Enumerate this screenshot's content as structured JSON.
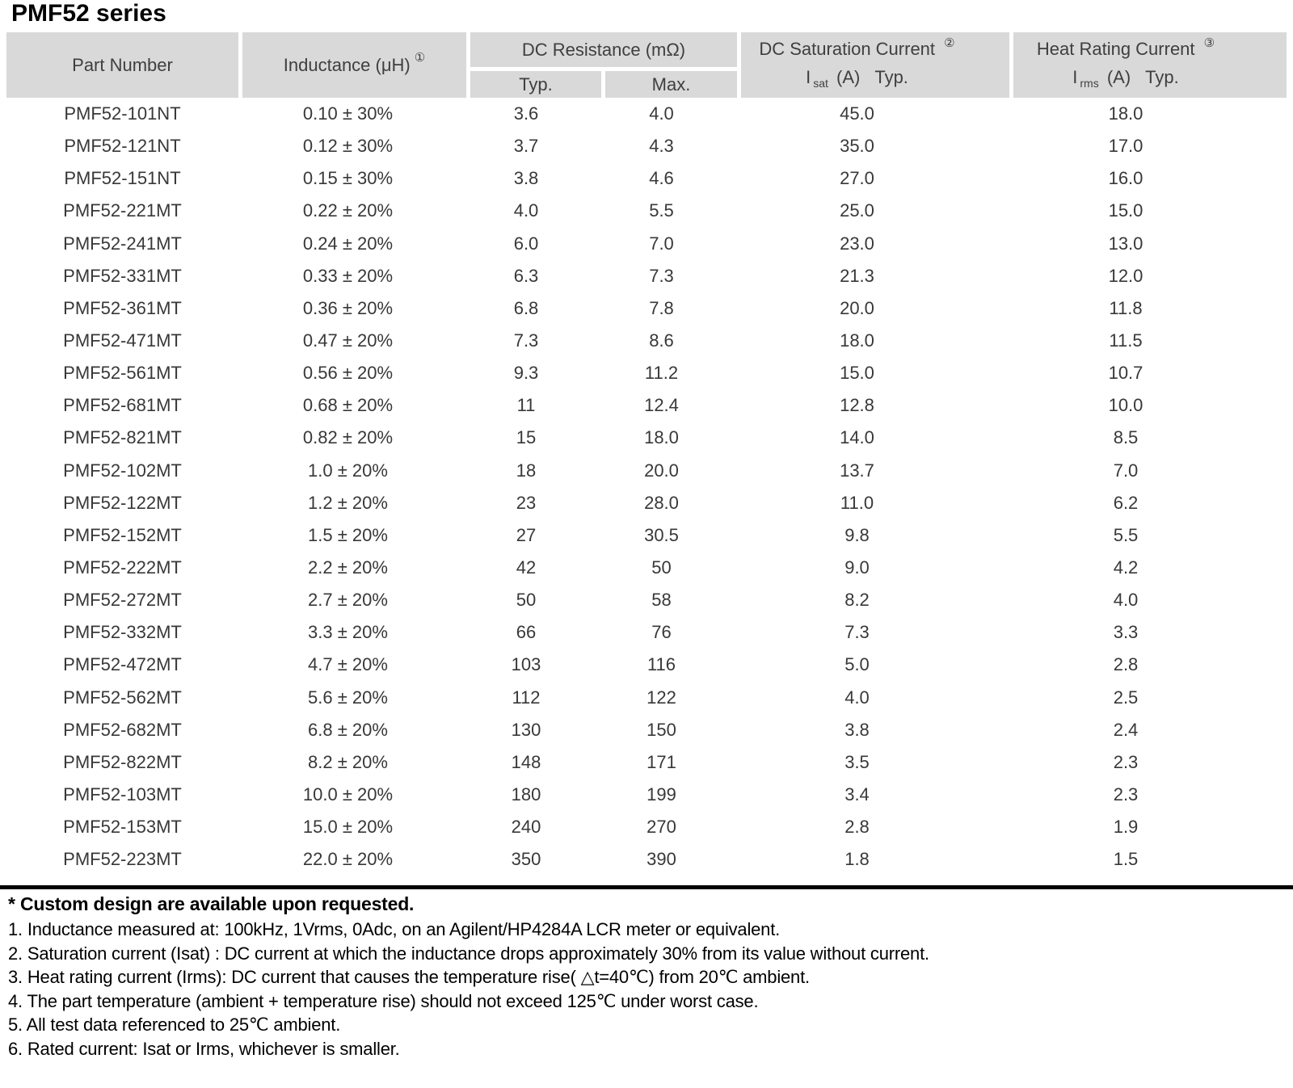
{
  "title": "PMF52 series",
  "colors": {
    "header_bg": "#d9d9d9",
    "header_text": "#3f3f3f",
    "body_text": "#383838",
    "rule": "#000000"
  },
  "table": {
    "headers": {
      "part_number": "Part Number",
      "inductance": "Inductance (μH)",
      "inductance_note": "①",
      "dc_resistance": "DC Resistance (mΩ)",
      "dc_resistance_typ": "Typ.",
      "dc_resistance_max": "Max.",
      "saturation": "DC Saturation Current",
      "saturation_note": "②",
      "saturation_sub": {
        "i": "I",
        "sub": "sat",
        "unit": "(A)",
        "typ": "Typ."
      },
      "heat": "Heat Rating Current",
      "heat_note": "③",
      "heat_sub": {
        "i": "I",
        "sub": "rms",
        "unit": "(A)",
        "typ": "Typ."
      }
    },
    "rows": [
      {
        "part": "PMF52-101NT",
        "ind": "0.10 ± 30%",
        "typ": "3.6",
        "max": "4.0",
        "isat": "45.0",
        "irms": "18.0"
      },
      {
        "part": "PMF52-121NT",
        "ind": "0.12 ± 30%",
        "typ": "3.7",
        "max": "4.3",
        "isat": "35.0",
        "irms": "17.0"
      },
      {
        "part": "PMF52-151NT",
        "ind": "0.15 ± 30%",
        "typ": "3.8",
        "max": "4.6",
        "isat": "27.0",
        "irms": "16.0"
      },
      {
        "part": "PMF52-221MT",
        "ind": "0.22 ± 20%",
        "typ": "4.0",
        "max": "5.5",
        "isat": "25.0",
        "irms": "15.0"
      },
      {
        "part": "PMF52-241MT",
        "ind": "0.24 ± 20%",
        "typ": "6.0",
        "max": "7.0",
        "isat": "23.0",
        "irms": "13.0"
      },
      {
        "part": "PMF52-331MT",
        "ind": "0.33 ± 20%",
        "typ": "6.3",
        "max": "7.3",
        "isat": "21.3",
        "irms": "12.0"
      },
      {
        "part": "PMF52-361MT",
        "ind": "0.36 ± 20%",
        "typ": "6.8",
        "max": "7.8",
        "isat": "20.0",
        "irms": "11.8"
      },
      {
        "part": "PMF52-471MT",
        "ind": "0.47 ± 20%",
        "typ": "7.3",
        "max": "8.6",
        "isat": "18.0",
        "irms": "11.5"
      },
      {
        "part": "PMF52-561MT",
        "ind": "0.56 ± 20%",
        "typ": "9.3",
        "max": "11.2",
        "isat": "15.0",
        "irms": "10.7"
      },
      {
        "part": "PMF52-681MT",
        "ind": "0.68 ± 20%",
        "typ": "11",
        "max": "12.4",
        "isat": "12.8",
        "irms": "10.0"
      },
      {
        "part": "PMF52-821MT",
        "ind": "0.82 ± 20%",
        "typ": "15",
        "max": "18.0",
        "isat": "14.0",
        "irms": "8.5"
      },
      {
        "part": "PMF52-102MT",
        "ind": "1.0 ± 20%",
        "typ": "18",
        "max": "20.0",
        "isat": "13.7",
        "irms": "7.0"
      },
      {
        "part": "PMF52-122MT",
        "ind": "1.2 ± 20%",
        "typ": "23",
        "max": "28.0",
        "isat": "11.0",
        "irms": "6.2"
      },
      {
        "part": "PMF52-152MT",
        "ind": "1.5 ± 20%",
        "typ": "27",
        "max": "30.5",
        "isat": "9.8",
        "irms": "5.5"
      },
      {
        "part": "PMF52-222MT",
        "ind": "2.2 ± 20%",
        "typ": "42",
        "max": "50",
        "isat": "9.0",
        "irms": "4.2"
      },
      {
        "part": "PMF52-272MT",
        "ind": "2.7 ± 20%",
        "typ": "50",
        "max": "58",
        "isat": "8.2",
        "irms": "4.0"
      },
      {
        "part": "PMF52-332MT",
        "ind": "3.3 ± 20%",
        "typ": "66",
        "max": "76",
        "isat": "7.3",
        "irms": "3.3"
      },
      {
        "part": "PMF52-472MT",
        "ind": "4.7 ± 20%",
        "typ": "103",
        "max": "116",
        "isat": "5.0",
        "irms": "2.8"
      },
      {
        "part": "PMF52-562MT",
        "ind": "5.6 ± 20%",
        "typ": "112",
        "max": "122",
        "isat": "4.0",
        "irms": "2.5"
      },
      {
        "part": "PMF52-682MT",
        "ind": "6.8 ± 20%",
        "typ": "130",
        "max": "150",
        "isat": "3.8",
        "irms": "2.4"
      },
      {
        "part": "PMF52-822MT",
        "ind": "8.2 ± 20%",
        "typ": "148",
        "max": "171",
        "isat": "3.5",
        "irms": "2.3"
      },
      {
        "part": "PMF52-103MT",
        "ind": "10.0 ± 20%",
        "typ": "180",
        "max": "199",
        "isat": "3.4",
        "irms": "2.3"
      },
      {
        "part": "PMF52-153MT",
        "ind": "15.0 ± 20%",
        "typ": "240",
        "max": "270",
        "isat": "2.8",
        "irms": "1.9"
      },
      {
        "part": "PMF52-223MT",
        "ind": "22.0 ± 20%",
        "typ": "350",
        "max": "390",
        "isat": "1.8",
        "irms": "1.5"
      }
    ]
  },
  "footnotes": {
    "custom": "* Custom design are available upon requested.",
    "notes": [
      "1. Inductance measured at: 100kHz, 1Vrms, 0Adc, on an Agilent/HP4284A LCR meter or equivalent.",
      "2. Saturation current (Isat) : DC current at which the inductance drops approximately 30% from its value without current.",
      "3. Heat rating current (Irms): DC current that causes the temperature rise( △t=40℃) from 20℃ ambient.",
      "4. The part temperature (ambient + temperature rise) should not exceed 125℃ under worst case.",
      "5. All test data referenced to 25℃ ambient.",
      "6. Rated current: Isat or Irms, whichever is smaller."
    ]
  }
}
